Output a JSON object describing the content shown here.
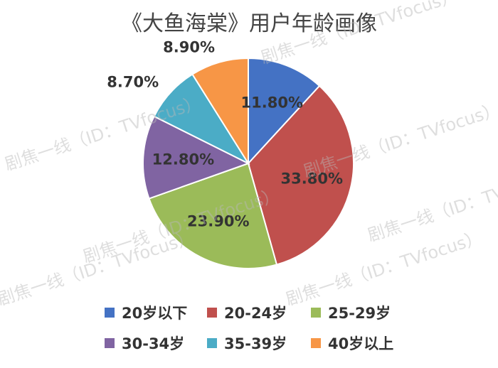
{
  "chart_data": {
    "type": "pie",
    "title": "《大鱼海棠》用户年龄画像",
    "categories": [
      "20岁以下",
      "20-24岁",
      "25-29岁",
      "30-34岁",
      "35-39岁",
      "40岁以上"
    ],
    "values": [
      11.8,
      33.8,
      23.9,
      12.8,
      8.7,
      8.9
    ],
    "value_labels": [
      "11.80%",
      "33.80%",
      "23.90%",
      "12.80%",
      "8.70%",
      "8.90%"
    ],
    "colors": [
      "#4472C4",
      "#C0504D",
      "#9BBB59",
      "#8064A2",
      "#4BACC6",
      "#F79646"
    ],
    "legend_position": "bottom",
    "start_angle": "12 o'clock",
    "direction": "clockwise"
  },
  "watermark": "剧焦一线（ID：TVfocus）"
}
